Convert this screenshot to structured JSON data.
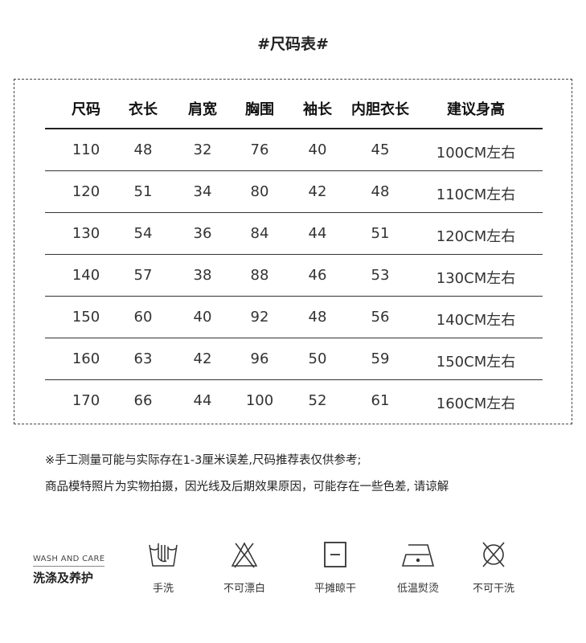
{
  "title": "#尺码表#",
  "table": {
    "headers": [
      "尺码",
      "衣长",
      "肩宽",
      "胸围",
      "袖长",
      "内胆衣长",
      "建议身高"
    ],
    "rows": [
      [
        "110",
        "48",
        "32",
        "76",
        "40",
        "45",
        "100CM左右"
      ],
      [
        "120",
        "51",
        "34",
        "80",
        "42",
        "48",
        "110CM左右"
      ],
      [
        "130",
        "54",
        "36",
        "84",
        "44",
        "51",
        "120CM左右"
      ],
      [
        "140",
        "57",
        "38",
        "88",
        "46",
        "53",
        "130CM左右"
      ],
      [
        "150",
        "60",
        "40",
        "92",
        "48",
        "56",
        "140CM左右"
      ],
      [
        "160",
        "63",
        "42",
        "96",
        "50",
        "59",
        "150CM左右"
      ],
      [
        "170",
        "66",
        "44",
        "100",
        "52",
        "61",
        "160CM左右"
      ]
    ]
  },
  "notes": [
    "※手工测量可能与实际存在1-3厘米误差,尺码推荐表仅供参考;",
    "商品模特照片为实物拍摄，因光线及后期效果原因，可能存在一些色差, 请谅解"
  ],
  "care": {
    "title_en": "WASH AND CARE",
    "title_zh": "洗涤及养护",
    "items": [
      {
        "icon": "hand-wash-icon",
        "label": "手洗"
      },
      {
        "icon": "no-bleach-icon",
        "label": "不可漂白"
      },
      {
        "icon": "dry-flat-icon",
        "label": "平摊晾干"
      },
      {
        "icon": "low-iron-icon",
        "label": "低温熨烫"
      },
      {
        "icon": "no-dry-clean-icon",
        "label": "不可干洗"
      }
    ]
  }
}
